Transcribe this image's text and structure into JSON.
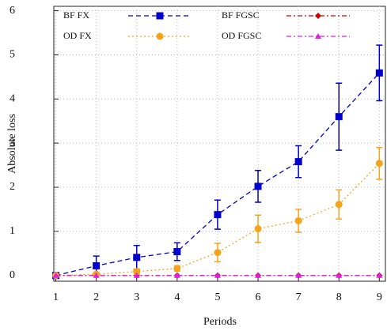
{
  "chart_data": {
    "type": "line",
    "x_label": "Periods",
    "y_label": "Absolute loss",
    "x": [
      1,
      2,
      3,
      4,
      5,
      6,
      7,
      8,
      9
    ],
    "xlim": [
      0.95,
      9.15
    ],
    "xticks": [
      1,
      2,
      3,
      4,
      5,
      6,
      7,
      8,
      9
    ],
    "ylim": [
      -0.13,
      6.1
    ],
    "yticks": [
      0,
      1,
      2,
      3,
      4,
      5,
      6
    ],
    "grid": true,
    "series": [
      {
        "name": "BF FX",
        "color": "#0000cc",
        "marker": "square",
        "dash": "6,4",
        "values": [
          0,
          0.22,
          0.41,
          0.54,
          1.38,
          2.02,
          2.58,
          3.6,
          4.59
        ],
        "errors": [
          0,
          0.22,
          0.27,
          0.2,
          0.33,
          0.36,
          0.36,
          0.76,
          0.63
        ]
      },
      {
        "name": "BF FGSC",
        "color": "#cc0000",
        "marker": "diamond",
        "dash": "6,3,2,3",
        "values": [
          0,
          0,
          0,
          0,
          0,
          0,
          0,
          0,
          0
        ]
      },
      {
        "name": "OD FX",
        "color": "#f5a31a",
        "marker": "circle",
        "dash": "2,3",
        "values": [
          0,
          0.03,
          0.09,
          0.16,
          0.52,
          1.06,
          1.24,
          1.61,
          2.54
        ],
        "errors": [
          0,
          0.03,
          0.06,
          0.06,
          0.21,
          0.31,
          0.26,
          0.33,
          0.36
        ]
      },
      {
        "name": "OD FGSC",
        "color": "#e020e0",
        "marker": "triangle",
        "dash": "6,3,2,3",
        "values": [
          0,
          0,
          0,
          0,
          0,
          0,
          0,
          0,
          0
        ]
      }
    ]
  }
}
